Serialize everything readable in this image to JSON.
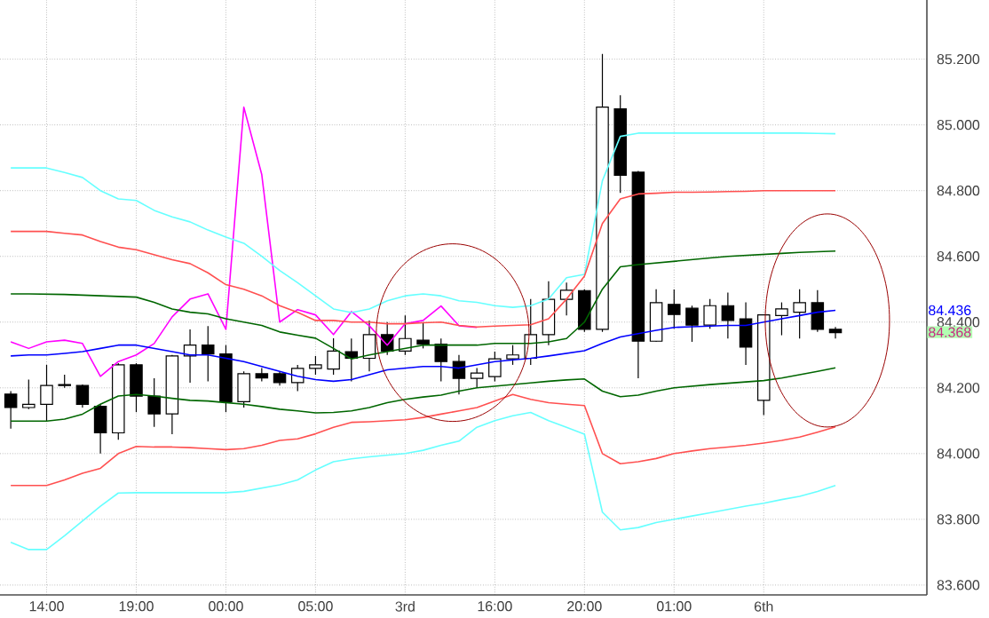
{
  "chart_data": {
    "type": "candlestick",
    "categories": [
      null,
      null,
      "14:00",
      null,
      null,
      null,
      null,
      "19:00",
      null,
      null,
      null,
      null,
      "00:00",
      null,
      null,
      null,
      null,
      "05:00",
      null,
      null,
      null,
      null,
      "3rd",
      null,
      null,
      null,
      null,
      "16:00",
      null,
      null,
      null,
      null,
      "20:00",
      null,
      null,
      null,
      null,
      "01:00",
      null,
      null,
      null,
      null,
      "6th",
      null,
      null,
      null,
      null
    ],
    "ohlc": [
      [
        84.181,
        84.19,
        84.076,
        84.14
      ],
      [
        84.14,
        84.225,
        84.135,
        84.15
      ],
      [
        84.15,
        84.27,
        84.099,
        84.207
      ],
      [
        84.207,
        84.24,
        84.2,
        84.21
      ],
      [
        84.207,
        84.21,
        84.14,
        84.15
      ],
      [
        84.144,
        84.15,
        84.0,
        84.063
      ],
      [
        84.063,
        84.275,
        84.042,
        84.27
      ],
      [
        84.27,
        84.275,
        84.126,
        84.175
      ],
      [
        84.175,
        84.229,
        84.081,
        84.121
      ],
      [
        84.121,
        84.3,
        84.059,
        84.297
      ],
      [
        84.297,
        84.378,
        84.216,
        84.33
      ],
      [
        84.33,
        84.388,
        84.22,
        84.303
      ],
      [
        84.303,
        84.33,
        84.126,
        84.158
      ],
      [
        84.158,
        84.25,
        84.14,
        84.243
      ],
      [
        84.243,
        84.26,
        84.22,
        84.23
      ],
      [
        84.243,
        84.25,
        84.207,
        84.216
      ],
      [
        84.216,
        84.27,
        84.19,
        84.259
      ],
      [
        84.259,
        84.297,
        84.24,
        84.27
      ],
      [
        84.257,
        84.351,
        84.24,
        84.312
      ],
      [
        84.31,
        84.35,
        84.22,
        84.29
      ],
      [
        84.29,
        84.405,
        84.25,
        84.362
      ],
      [
        84.362,
        84.4,
        84.3,
        84.312
      ],
      [
        84.312,
        84.42,
        84.3,
        84.35
      ],
      [
        84.345,
        84.4,
        84.32,
        84.333
      ],
      [
        84.333,
        84.35,
        84.22,
        84.28
      ],
      [
        84.28,
        84.3,
        84.18,
        84.229
      ],
      [
        84.229,
        84.26,
        84.2,
        84.245
      ],
      [
        84.234,
        84.31,
        84.22,
        84.288
      ],
      [
        84.288,
        84.33,
        84.27,
        84.3
      ],
      [
        84.29,
        84.47,
        84.27,
        84.362
      ],
      [
        84.362,
        84.524,
        84.33,
        84.469
      ],
      [
        84.469,
        84.52,
        84.42,
        84.497
      ],
      [
        84.496,
        84.5,
        84.37,
        84.378
      ],
      [
        84.378,
        85.216,
        84.37,
        85.054
      ],
      [
        85.049,
        85.09,
        84.793,
        84.847
      ],
      [
        84.856,
        84.86,
        84.229,
        84.342
      ],
      [
        84.342,
        84.5,
        84.34,
        84.459
      ],
      [
        84.454,
        84.499,
        84.38,
        84.423
      ],
      [
        84.442,
        84.45,
        84.34,
        84.391
      ],
      [
        84.391,
        84.47,
        84.38,
        84.45
      ],
      [
        84.45,
        84.49,
        84.35,
        84.405
      ],
      [
        84.41,
        84.46,
        84.27,
        84.324
      ],
      [
        84.162,
        84.422,
        84.117,
        84.422
      ],
      [
        84.42,
        84.46,
        84.36,
        84.44
      ],
      [
        84.43,
        84.5,
        84.35,
        84.459
      ],
      [
        84.459,
        84.497,
        84.37,
        84.378
      ],
      [
        84.378,
        84.385,
        84.35,
        84.368
      ]
    ],
    "series": [
      {
        "type": "line",
        "color": "#ff00ff",
        "values": [
          84.34,
          84.32,
          84.34,
          84.345,
          84.335,
          84.235,
          84.28,
          84.3,
          84.335,
          84.416,
          84.47,
          84.486,
          84.378,
          85.054,
          84.849,
          84.4,
          84.438,
          84.422,
          84.362,
          84.432,
          84.389,
          84.33,
          84.395,
          84.405,
          84.449,
          84.389,
          84.384,
          null,
          null,
          null,
          null,
          null,
          null,
          null,
          null,
          null,
          null,
          null,
          null,
          null,
          null,
          null,
          null,
          null,
          null,
          null,
          null
        ]
      },
      {
        "type": "line",
        "color": "#66ffff",
        "values": [
          84.869,
          84.869,
          84.869,
          84.855,
          84.84,
          84.8,
          84.775,
          84.77,
          84.74,
          84.72,
          84.705,
          84.68,
          84.659,
          84.64,
          84.6,
          84.557,
          84.52,
          84.48,
          84.44,
          84.429,
          84.44,
          84.465,
          84.48,
          84.486,
          84.48,
          84.465,
          84.46,
          84.45,
          84.445,
          84.45,
          84.47,
          84.535,
          84.545,
          84.83,
          84.965,
          84.975,
          84.975,
          84.975,
          84.975,
          84.975,
          84.975,
          84.975,
          84.975,
          84.975,
          84.975,
          84.974,
          84.973
        ]
      },
      {
        "type": "line",
        "color": "#66ffff",
        "values": [
          83.73,
          83.708,
          83.708,
          83.75,
          83.795,
          83.84,
          83.88,
          83.881,
          83.881,
          83.881,
          83.881,
          83.881,
          83.881,
          83.885,
          83.895,
          83.905,
          83.92,
          83.95,
          83.975,
          83.984,
          83.99,
          83.995,
          84.0,
          84.01,
          84.025,
          84.038,
          84.08,
          84.1,
          84.115,
          84.125,
          84.1,
          84.08,
          84.059,
          83.822,
          83.768,
          83.775,
          83.79,
          83.8,
          83.81,
          83.82,
          83.83,
          83.84,
          83.849,
          83.86,
          83.87,
          83.885,
          83.903
        ]
      },
      {
        "type": "line",
        "color": "#ff5050",
        "values": [
          84.676,
          84.676,
          84.676,
          84.67,
          84.665,
          84.645,
          84.628,
          84.62,
          84.605,
          84.59,
          84.578,
          84.55,
          84.514,
          84.5,
          84.48,
          84.45,
          84.43,
          84.405,
          84.405,
          84.4,
          84.4,
          84.395,
          84.395,
          84.398,
          84.4,
          84.39,
          84.385,
          84.388,
          84.39,
          84.392,
          84.41,
          84.47,
          84.54,
          84.7,
          84.775,
          84.79,
          84.792,
          84.795,
          84.795,
          84.796,
          84.797,
          84.798,
          84.8,
          84.8,
          84.8,
          84.8,
          84.8
        ]
      },
      {
        "type": "line",
        "color": "#ff5050",
        "values": [
          83.903,
          83.903,
          83.903,
          83.92,
          83.94,
          83.955,
          84.0,
          84.022,
          84.02,
          84.02,
          84.018,
          84.015,
          84.012,
          84.015,
          84.025,
          84.04,
          84.045,
          84.06,
          84.08,
          84.095,
          84.097,
          84.1,
          84.103,
          84.11,
          84.12,
          84.13,
          84.14,
          84.16,
          84.18,
          84.165,
          84.155,
          84.15,
          84.146,
          84.0,
          83.969,
          83.975,
          83.985,
          84.0,
          84.008,
          84.015,
          84.02,
          84.025,
          84.032,
          84.04,
          84.05,
          84.065,
          84.081
        ]
      },
      {
        "type": "line",
        "color": "#006600",
        "values": [
          84.486,
          84.486,
          84.485,
          84.484,
          84.482,
          84.48,
          84.478,
          84.476,
          84.46,
          84.44,
          84.43,
          84.425,
          84.41,
          84.4,
          84.39,
          84.37,
          84.36,
          84.351,
          84.32,
          84.288,
          84.3,
          84.31,
          84.32,
          84.33,
          84.33,
          84.33,
          84.33,
          84.335,
          84.335,
          84.335,
          84.34,
          84.35,
          84.4,
          84.5,
          84.568,
          84.575,
          84.58,
          84.585,
          84.59,
          84.595,
          84.6,
          84.603,
          84.606,
          84.609,
          84.612,
          84.614,
          84.616
        ]
      },
      {
        "type": "line",
        "color": "#006600",
        "values": [
          84.099,
          84.099,
          84.099,
          84.105,
          84.12,
          84.15,
          84.175,
          84.18,
          84.175,
          84.168,
          84.162,
          84.16,
          84.155,
          84.15,
          84.143,
          84.135,
          84.13,
          84.124,
          84.125,
          84.13,
          84.14,
          84.155,
          84.165,
          84.172,
          84.178,
          84.19,
          84.2,
          84.205,
          84.21,
          84.215,
          84.22,
          84.224,
          84.227,
          84.19,
          84.173,
          84.178,
          84.19,
          84.2,
          84.205,
          84.21,
          84.214,
          84.218,
          84.222,
          84.23,
          84.24,
          84.25,
          84.261
        ]
      },
      {
        "type": "line",
        "color": "#0000ff",
        "values": [
          84.297,
          84.3,
          84.3,
          84.305,
          84.31,
          84.32,
          84.33,
          84.33,
          84.32,
          84.31,
          84.3,
          84.3,
          84.29,
          84.28,
          84.265,
          84.25,
          84.235,
          84.225,
          84.22,
          84.225,
          84.24,
          84.255,
          84.26,
          84.265,
          84.265,
          84.26,
          84.27,
          84.28,
          84.285,
          84.29,
          84.297,
          84.305,
          84.313,
          84.335,
          84.355,
          84.365,
          84.375,
          84.384,
          84.386,
          84.388,
          84.39,
          84.39,
          84.4,
          84.41,
          84.42,
          84.43,
          84.436
        ]
      }
    ],
    "ylim": [
      83.57,
      85.38
    ],
    "yticks": [
      {
        "value": 83.6,
        "label": "83.600"
      },
      {
        "value": 83.8,
        "label": "83.800"
      },
      {
        "value": 84.0,
        "label": "84.000"
      },
      {
        "value": 84.2,
        "label": "84.200"
      },
      {
        "value": 84.4,
        "label": "84.400"
      },
      {
        "value": 84.6,
        "label": "84.600"
      },
      {
        "value": 84.8,
        "label": "84.800"
      },
      {
        "value": 85.0,
        "label": "85.000"
      },
      {
        "value": 85.2,
        "label": "85.200"
      }
    ],
    "grid": true,
    "annotations": [
      "84.436",
      "84.368"
    ]
  }
}
